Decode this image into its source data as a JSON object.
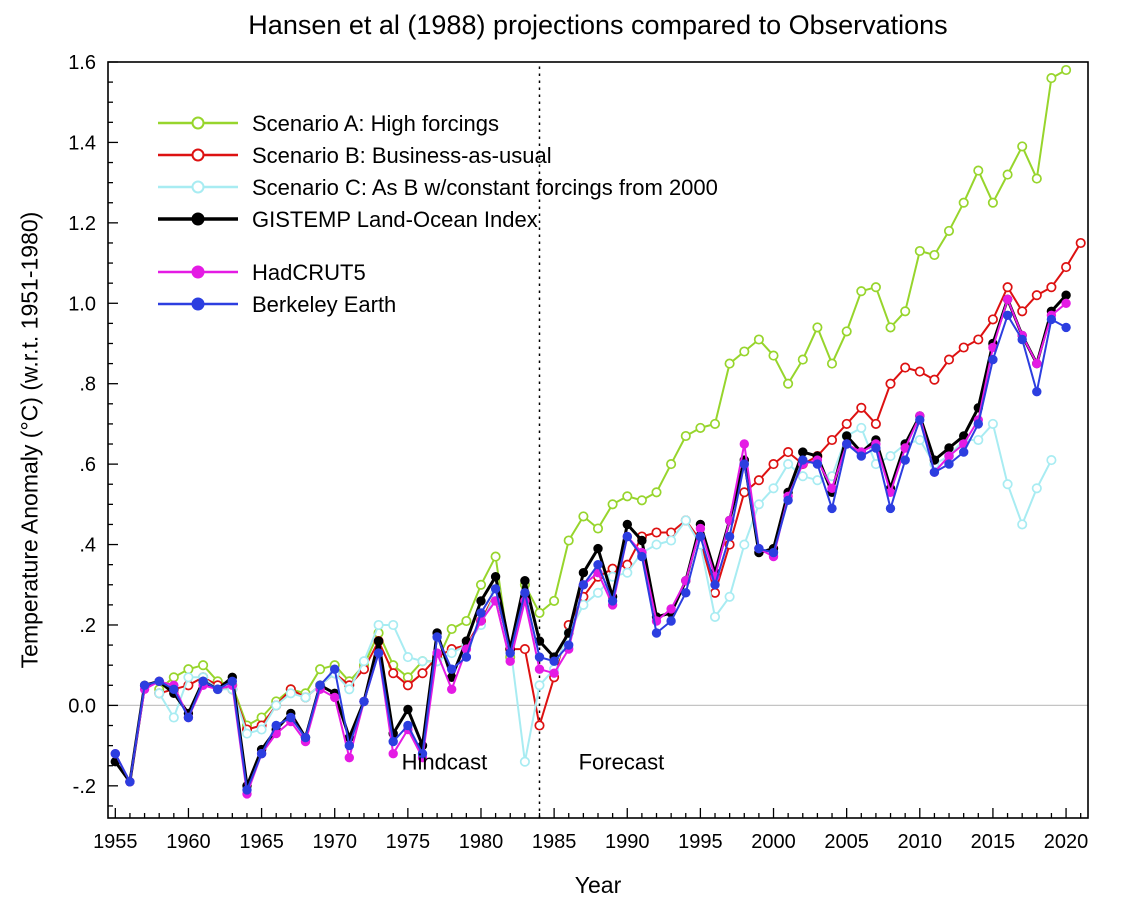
{
  "chart_data": {
    "type": "line",
    "title": "Hansen et al (1988) projections compared to Observations",
    "xlabel": "Year",
    "ylabel": "Temperature Anomaly (°C) (w.r.t. 1951-1980)",
    "xlim": [
      1954.5,
      2021.5
    ],
    "ylim": [
      -0.28,
      1.6
    ],
    "xticks": [
      1955,
      1960,
      1965,
      1970,
      1975,
      1980,
      1985,
      1990,
      1995,
      2000,
      2005,
      2010,
      2015,
      2020
    ],
    "yticks": [
      {
        "value": -0.2,
        "label": "-.2"
      },
      {
        "value": 0.0,
        "label": "0.0"
      },
      {
        "value": 0.2,
        "label": ".2"
      },
      {
        "value": 0.4,
        "label": ".4"
      },
      {
        "value": 0.6,
        "label": ".6"
      },
      {
        "value": 0.8,
        "label": ".8"
      },
      {
        "value": 1.0,
        "label": "1.0"
      },
      {
        "value": 1.2,
        "label": "1.2"
      },
      {
        "value": 1.4,
        "label": "1.4"
      },
      {
        "value": 1.6,
        "label": "1.6"
      }
    ],
    "grid": false,
    "zero_line": {
      "y": 0,
      "color": "#c4c4c4"
    },
    "divider": {
      "x": 1984,
      "style": "dashed",
      "color": "#000000"
    },
    "annotations": [
      {
        "text": "Hindcast",
        "x": 1977.5,
        "y": -0.16
      },
      {
        "text": "Forecast",
        "x": 1989.6,
        "y": -0.16
      }
    ],
    "legend_position": "upper-left-inside",
    "series": [
      {
        "name": "Scenario A: High forcings",
        "color": "#97d52c",
        "marker": "open",
        "line_width": 2,
        "x_start": 1958,
        "x_step": 1,
        "values": [
          0.04,
          0.07,
          0.09,
          0.1,
          0.06,
          0.05,
          -0.05,
          -0.03,
          0.01,
          0.04,
          0.03,
          0.09,
          0.1,
          0.06,
          0.1,
          0.18,
          0.1,
          0.07,
          0.11,
          0.11,
          0.19,
          0.21,
          0.3,
          0.37,
          0.12,
          0.3,
          0.23,
          0.26,
          0.41,
          0.47,
          0.44,
          0.5,
          0.52,
          0.51,
          0.53,
          0.6,
          0.67,
          0.69,
          0.7,
          0.85,
          0.88,
          0.91,
          0.87,
          0.8,
          0.86,
          0.94,
          0.85,
          0.93,
          1.03,
          1.04,
          0.94,
          0.98,
          1.13,
          1.12,
          1.18,
          1.25,
          1.33,
          1.25,
          1.32,
          1.39,
          1.31,
          1.56,
          1.58
        ]
      },
      {
        "name": "Scenario B: Business-as-usual",
        "color": "#dd1111",
        "marker": "open",
        "line_width": 2,
        "x_start": 1958,
        "x_step": 1,
        "values": [
          0.03,
          0.04,
          0.05,
          0.07,
          0.05,
          0.04,
          -0.06,
          -0.05,
          0.0,
          0.04,
          0.02,
          0.05,
          0.08,
          0.05,
          0.09,
          0.16,
          0.08,
          0.05,
          0.08,
          0.12,
          0.14,
          0.15,
          0.21,
          0.28,
          0.14,
          0.14,
          -0.05,
          0.07,
          0.2,
          0.27,
          0.32,
          0.34,
          0.35,
          0.42,
          0.43,
          0.43,
          0.46,
          0.41,
          0.28,
          0.4,
          0.53,
          0.56,
          0.6,
          0.63,
          0.6,
          0.62,
          0.66,
          0.7,
          0.74,
          0.7,
          0.8,
          0.84,
          0.83,
          0.81,
          0.86,
          0.89,
          0.91,
          0.96,
          1.04,
          0.98,
          1.02,
          1.04,
          1.09,
          1.15
        ]
      },
      {
        "name": "Scenario C: As B w/constant forcings from 2000",
        "color": "#a8ecf2",
        "marker": "open",
        "line_width": 2,
        "x_start": 1958,
        "x_step": 1,
        "values": [
          0.03,
          -0.03,
          0.07,
          0.07,
          0.04,
          0.04,
          -0.07,
          -0.06,
          0.0,
          0.03,
          0.02,
          0.05,
          0.08,
          0.04,
          0.11,
          0.2,
          0.2,
          0.12,
          0.11,
          0.11,
          0.13,
          0.15,
          0.2,
          0.28,
          0.15,
          -0.14,
          0.05,
          0.09,
          0.18,
          0.25,
          0.28,
          0.32,
          0.33,
          0.38,
          0.4,
          0.41,
          0.46,
          0.4,
          0.22,
          0.27,
          0.4,
          0.5,
          0.54,
          0.6,
          0.57,
          0.56,
          0.57,
          0.67,
          0.69,
          0.6,
          0.62,
          0.65,
          0.66,
          0.6,
          0.62,
          0.66,
          0.66,
          0.7,
          0.55,
          0.45,
          0.54,
          0.61
        ]
      },
      {
        "name": "GISTEMP Land-Ocean Index",
        "color": "#000000",
        "marker": "filled",
        "line_width": 3,
        "x_start": 1955,
        "x_step": 1,
        "values": [
          -0.14,
          -0.19,
          0.05,
          0.06,
          0.03,
          -0.02,
          0.06,
          0.04,
          0.07,
          -0.2,
          -0.11,
          -0.06,
          -0.02,
          -0.08,
          0.05,
          0.03,
          -0.08,
          0.01,
          0.16,
          -0.07,
          -0.01,
          -0.1,
          0.18,
          0.07,
          0.16,
          0.26,
          0.32,
          0.14,
          0.31,
          0.16,
          0.12,
          0.18,
          0.33,
          0.39,
          0.27,
          0.45,
          0.41,
          0.22,
          0.23,
          0.31,
          0.45,
          0.33,
          0.46,
          0.61,
          0.38,
          0.39,
          0.53,
          0.63,
          0.62,
          0.53,
          0.67,
          0.63,
          0.66,
          0.54,
          0.65,
          0.72,
          0.61,
          0.64,
          0.67,
          0.74,
          0.9,
          1.01,
          0.92,
          0.85,
          0.98,
          1.02
        ]
      },
      {
        "name": "HadCRUT5",
        "color": "#e41be4",
        "marker": "filled",
        "line_width": 2,
        "x_start": 1955,
        "x_step": 1,
        "values": [
          -0.12,
          -0.19,
          0.04,
          0.06,
          0.05,
          -0.03,
          0.05,
          0.04,
          0.05,
          -0.22,
          -0.12,
          -0.07,
          -0.04,
          -0.09,
          0.04,
          0.02,
          -0.13,
          0.01,
          0.13,
          -0.12,
          -0.06,
          -0.13,
          0.13,
          0.04,
          0.14,
          0.21,
          0.26,
          0.11,
          0.26,
          0.09,
          0.08,
          0.14,
          0.3,
          0.33,
          0.25,
          0.42,
          0.38,
          0.21,
          0.24,
          0.31,
          0.44,
          0.32,
          0.46,
          0.65,
          0.39,
          0.37,
          0.52,
          0.6,
          0.61,
          0.54,
          0.65,
          0.63,
          0.65,
          0.53,
          0.64,
          0.72,
          0.58,
          0.62,
          0.65,
          0.71,
          0.89,
          1.01,
          0.92,
          0.85,
          0.97,
          1.0
        ]
      },
      {
        "name": "Berkeley Earth",
        "color": "#2c3ee0",
        "marker": "filled",
        "line_width": 2,
        "x_start": 1955,
        "x_step": 1,
        "values": [
          -0.12,
          -0.19,
          0.05,
          0.06,
          0.04,
          -0.03,
          0.06,
          0.04,
          0.06,
          -0.21,
          -0.12,
          -0.05,
          -0.03,
          -0.08,
          0.05,
          0.09,
          -0.1,
          0.01,
          0.13,
          -0.09,
          -0.05,
          -0.12,
          0.17,
          0.09,
          0.12,
          0.23,
          0.29,
          0.13,
          0.28,
          0.12,
          0.11,
          0.15,
          0.3,
          0.35,
          0.26,
          0.42,
          0.37,
          0.18,
          0.21,
          0.28,
          0.42,
          0.3,
          0.42,
          0.6,
          0.39,
          0.38,
          0.51,
          0.61,
          0.6,
          0.49,
          0.65,
          0.62,
          0.64,
          0.49,
          0.61,
          0.71,
          0.58,
          0.6,
          0.63,
          0.7,
          0.86,
          0.97,
          0.91,
          0.78,
          0.96,
          0.94
        ]
      }
    ]
  }
}
